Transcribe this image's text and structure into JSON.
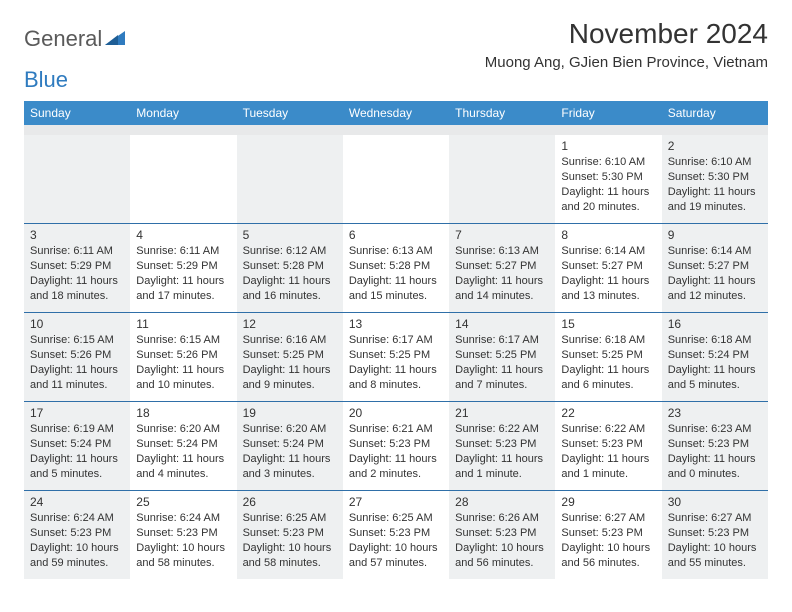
{
  "logo": {
    "text_a": "General",
    "text_b": "Blue"
  },
  "header": {
    "month_title": "November 2024",
    "location": "Muong Ang, GJien Bien Province, Vietnam"
  },
  "colors": {
    "header_bar": "#3b8bc9",
    "week_divider": "#2f6fa8",
    "shade_bg": "#eef0f1",
    "spacer_bg": "#e8e9ea",
    "text": "#333333",
    "logo_gray": "#5a5a5a",
    "logo_blue": "#2f7bbf"
  },
  "day_names": [
    "Sunday",
    "Monday",
    "Tuesday",
    "Wednesday",
    "Thursday",
    "Friday",
    "Saturday"
  ],
  "weeks": [
    [
      {
        "shade": true
      },
      {
        "shade": false
      },
      {
        "shade": true
      },
      {
        "shade": false
      },
      {
        "shade": true
      },
      {
        "shade": false,
        "day": "1",
        "sunrise": "Sunrise: 6:10 AM",
        "sunset": "Sunset: 5:30 PM",
        "daylight": "Daylight: 11 hours and 20 minutes."
      },
      {
        "shade": true,
        "day": "2",
        "sunrise": "Sunrise: 6:10 AM",
        "sunset": "Sunset: 5:30 PM",
        "daylight": "Daylight: 11 hours and 19 minutes."
      }
    ],
    [
      {
        "shade": true,
        "day": "3",
        "sunrise": "Sunrise: 6:11 AM",
        "sunset": "Sunset: 5:29 PM",
        "daylight": "Daylight: 11 hours and 18 minutes."
      },
      {
        "shade": false,
        "day": "4",
        "sunrise": "Sunrise: 6:11 AM",
        "sunset": "Sunset: 5:29 PM",
        "daylight": "Daylight: 11 hours and 17 minutes."
      },
      {
        "shade": true,
        "day": "5",
        "sunrise": "Sunrise: 6:12 AM",
        "sunset": "Sunset: 5:28 PM",
        "daylight": "Daylight: 11 hours and 16 minutes."
      },
      {
        "shade": false,
        "day": "6",
        "sunrise": "Sunrise: 6:13 AM",
        "sunset": "Sunset: 5:28 PM",
        "daylight": "Daylight: 11 hours and 15 minutes."
      },
      {
        "shade": true,
        "day": "7",
        "sunrise": "Sunrise: 6:13 AM",
        "sunset": "Sunset: 5:27 PM",
        "daylight": "Daylight: 11 hours and 14 minutes."
      },
      {
        "shade": false,
        "day": "8",
        "sunrise": "Sunrise: 6:14 AM",
        "sunset": "Sunset: 5:27 PM",
        "daylight": "Daylight: 11 hours and 13 minutes."
      },
      {
        "shade": true,
        "day": "9",
        "sunrise": "Sunrise: 6:14 AM",
        "sunset": "Sunset: 5:27 PM",
        "daylight": "Daylight: 11 hours and 12 minutes."
      }
    ],
    [
      {
        "shade": true,
        "day": "10",
        "sunrise": "Sunrise: 6:15 AM",
        "sunset": "Sunset: 5:26 PM",
        "daylight": "Daylight: 11 hours and 11 minutes."
      },
      {
        "shade": false,
        "day": "11",
        "sunrise": "Sunrise: 6:15 AM",
        "sunset": "Sunset: 5:26 PM",
        "daylight": "Daylight: 11 hours and 10 minutes."
      },
      {
        "shade": true,
        "day": "12",
        "sunrise": "Sunrise: 6:16 AM",
        "sunset": "Sunset: 5:25 PM",
        "daylight": "Daylight: 11 hours and 9 minutes."
      },
      {
        "shade": false,
        "day": "13",
        "sunrise": "Sunrise: 6:17 AM",
        "sunset": "Sunset: 5:25 PM",
        "daylight": "Daylight: 11 hours and 8 minutes."
      },
      {
        "shade": true,
        "day": "14",
        "sunrise": "Sunrise: 6:17 AM",
        "sunset": "Sunset: 5:25 PM",
        "daylight": "Daylight: 11 hours and 7 minutes."
      },
      {
        "shade": false,
        "day": "15",
        "sunrise": "Sunrise: 6:18 AM",
        "sunset": "Sunset: 5:25 PM",
        "daylight": "Daylight: 11 hours and 6 minutes."
      },
      {
        "shade": true,
        "day": "16",
        "sunrise": "Sunrise: 6:18 AM",
        "sunset": "Sunset: 5:24 PM",
        "daylight": "Daylight: 11 hours and 5 minutes."
      }
    ],
    [
      {
        "shade": true,
        "day": "17",
        "sunrise": "Sunrise: 6:19 AM",
        "sunset": "Sunset: 5:24 PM",
        "daylight": "Daylight: 11 hours and 5 minutes."
      },
      {
        "shade": false,
        "day": "18",
        "sunrise": "Sunrise: 6:20 AM",
        "sunset": "Sunset: 5:24 PM",
        "daylight": "Daylight: 11 hours and 4 minutes."
      },
      {
        "shade": true,
        "day": "19",
        "sunrise": "Sunrise: 6:20 AM",
        "sunset": "Sunset: 5:24 PM",
        "daylight": "Daylight: 11 hours and 3 minutes."
      },
      {
        "shade": false,
        "day": "20",
        "sunrise": "Sunrise: 6:21 AM",
        "sunset": "Sunset: 5:23 PM",
        "daylight": "Daylight: 11 hours and 2 minutes."
      },
      {
        "shade": true,
        "day": "21",
        "sunrise": "Sunrise: 6:22 AM",
        "sunset": "Sunset: 5:23 PM",
        "daylight": "Daylight: 11 hours and 1 minute."
      },
      {
        "shade": false,
        "day": "22",
        "sunrise": "Sunrise: 6:22 AM",
        "sunset": "Sunset: 5:23 PM",
        "daylight": "Daylight: 11 hours and 1 minute."
      },
      {
        "shade": true,
        "day": "23",
        "sunrise": "Sunrise: 6:23 AM",
        "sunset": "Sunset: 5:23 PM",
        "daylight": "Daylight: 11 hours and 0 minutes."
      }
    ],
    [
      {
        "shade": true,
        "day": "24",
        "sunrise": "Sunrise: 6:24 AM",
        "sunset": "Sunset: 5:23 PM",
        "daylight": "Daylight: 10 hours and 59 minutes."
      },
      {
        "shade": false,
        "day": "25",
        "sunrise": "Sunrise: 6:24 AM",
        "sunset": "Sunset: 5:23 PM",
        "daylight": "Daylight: 10 hours and 58 minutes."
      },
      {
        "shade": true,
        "day": "26",
        "sunrise": "Sunrise: 6:25 AM",
        "sunset": "Sunset: 5:23 PM",
        "daylight": "Daylight: 10 hours and 58 minutes."
      },
      {
        "shade": false,
        "day": "27",
        "sunrise": "Sunrise: 6:25 AM",
        "sunset": "Sunset: 5:23 PM",
        "daylight": "Daylight: 10 hours and 57 minutes."
      },
      {
        "shade": true,
        "day": "28",
        "sunrise": "Sunrise: 6:26 AM",
        "sunset": "Sunset: 5:23 PM",
        "daylight": "Daylight: 10 hours and 56 minutes."
      },
      {
        "shade": false,
        "day": "29",
        "sunrise": "Sunrise: 6:27 AM",
        "sunset": "Sunset: 5:23 PM",
        "daylight": "Daylight: 10 hours and 56 minutes."
      },
      {
        "shade": true,
        "day": "30",
        "sunrise": "Sunrise: 6:27 AM",
        "sunset": "Sunset: 5:23 PM",
        "daylight": "Daylight: 10 hours and 55 minutes."
      }
    ]
  ]
}
